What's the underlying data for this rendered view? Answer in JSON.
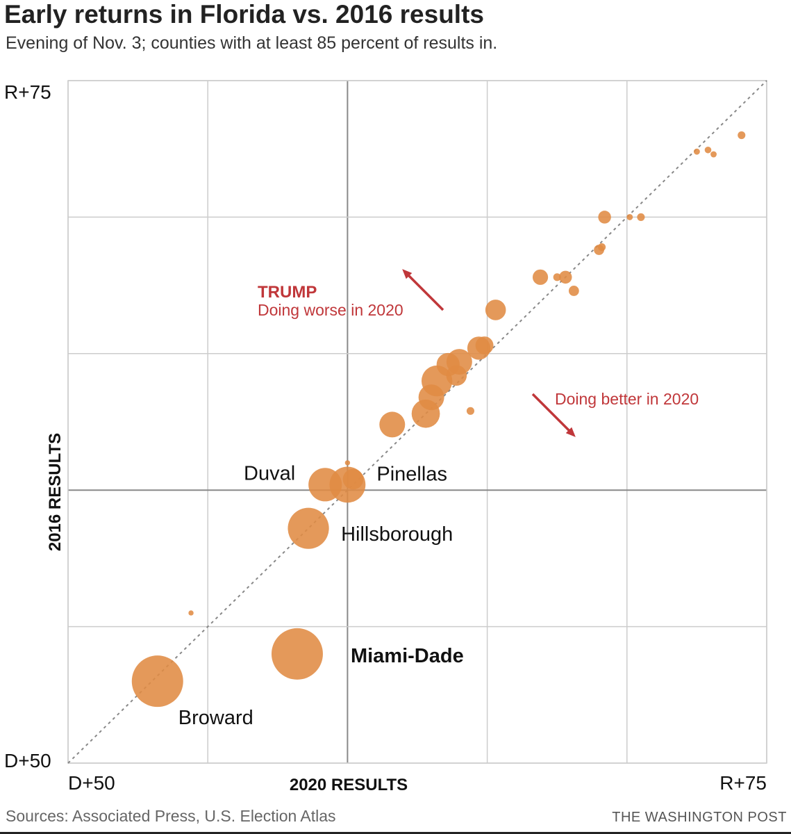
{
  "header": {
    "title": "Early returns in Florida vs. 2016 results",
    "subtitle": "Evening of Nov. 3; counties with at least 85 percent of results in."
  },
  "footer": {
    "sources": "Sources: Associated Press, U.S. Election Atlas",
    "credit": "THE WASHINGTON POST"
  },
  "colors": {
    "bubble": "#e08b43",
    "annotation": "#c0373a",
    "grid": "#cccccc",
    "axis_zero": "#888888",
    "diagonal": "#888888"
  },
  "chart_data": {
    "type": "scatter",
    "title": "Early returns in Florida vs. 2016 results",
    "subtitle": "Evening of Nov. 3; counties with at least 85 percent of results in.",
    "xlabel": "2020 RESULTS",
    "ylabel": "2016 RESULTS",
    "xlim": [
      -50,
      75
    ],
    "ylim": [
      -50,
      75
    ],
    "x_tick_labels": [
      "D+50",
      "R+75"
    ],
    "y_tick_labels": [
      "R+75",
      "D+50"
    ],
    "gridlines_every": 25,
    "reference_line": "y = x",
    "size_encoding": "relative county vote size (r = 1 to 10)",
    "annotations": {
      "trump_label": "TRUMP",
      "worse": "Doing worse in 2020",
      "better": "Doing better in 2020"
    },
    "points": [
      {
        "county": "Broward",
        "label": "Broward",
        "x": -34,
        "y": -35,
        "size": 10,
        "labeled": true,
        "bold": false
      },
      {
        "county": "Miami-Dade",
        "label": "Miami-Dade",
        "x": -9,
        "y": -30,
        "size": 10,
        "labeled": true,
        "bold": true
      },
      {
        "county": "Hillsborough",
        "label": "Hillsborough",
        "x": -7,
        "y": -7,
        "size": 8,
        "labeled": true,
        "bold": false
      },
      {
        "county": "Duval",
        "label": "Duval",
        "x": -4,
        "y": 1,
        "size": 6.5,
        "labeled": true,
        "bold": false
      },
      {
        "county": "Pinellas",
        "label": "Pinellas",
        "x": 0,
        "y": 1,
        "size": 7,
        "labeled": true,
        "bold": false
      },
      {
        "county": "",
        "x": 1,
        "y": 2,
        "size": 4,
        "labeled": false
      },
      {
        "county": "",
        "x": -28,
        "y": -22.5,
        "size": 1,
        "labeled": false
      },
      {
        "county": "",
        "x": 0,
        "y": 5,
        "size": 1,
        "labeled": false
      },
      {
        "county": "",
        "x": 8,
        "y": 12,
        "size": 5,
        "labeled": false
      },
      {
        "county": "",
        "x": 14,
        "y": 14,
        "size": 5.5,
        "labeled": false
      },
      {
        "county": "",
        "x": 15,
        "y": 17,
        "size": 5,
        "labeled": false
      },
      {
        "county": "",
        "x": 16,
        "y": 20,
        "size": 6,
        "labeled": false
      },
      {
        "county": "",
        "x": 19.5,
        "y": 21,
        "size": 4,
        "labeled": false
      },
      {
        "county": "",
        "x": 18,
        "y": 23,
        "size": 4.5,
        "labeled": false
      },
      {
        "county": "",
        "x": 20,
        "y": 23.5,
        "size": 5,
        "labeled": false
      },
      {
        "county": "",
        "x": 22,
        "y": 14.5,
        "size": 1.5,
        "labeled": false
      },
      {
        "county": "",
        "x": 23.5,
        "y": 26,
        "size": 4.5,
        "labeled": false
      },
      {
        "county": "",
        "x": 24.5,
        "y": 26.5,
        "size": 3.5,
        "labeled": false
      },
      {
        "county": "",
        "x": 26.5,
        "y": 33,
        "size": 4,
        "labeled": false
      },
      {
        "county": "",
        "x": 34.5,
        "y": 39,
        "size": 3,
        "labeled": false
      },
      {
        "county": "",
        "x": 37.5,
        "y": 39,
        "size": 1.5,
        "labeled": false
      },
      {
        "county": "",
        "x": 39,
        "y": 39,
        "size": 2.5,
        "labeled": false
      },
      {
        "county": "",
        "x": 40.5,
        "y": 36.5,
        "size": 2,
        "labeled": false
      },
      {
        "county": "",
        "x": 45,
        "y": 44,
        "size": 2,
        "labeled": false
      },
      {
        "county": "",
        "x": 45.5,
        "y": 44.5,
        "size": 1.5,
        "labeled": false
      },
      {
        "county": "",
        "x": 46,
        "y": 50,
        "size": 2.5,
        "labeled": false
      },
      {
        "county": "",
        "x": 50.5,
        "y": 50,
        "size": 1.2,
        "labeled": false
      },
      {
        "county": "",
        "x": 52.5,
        "y": 50,
        "size": 1.5,
        "labeled": false
      },
      {
        "county": "",
        "x": 62.5,
        "y": 62,
        "size": 1.2,
        "labeled": false
      },
      {
        "county": "",
        "x": 64.5,
        "y": 62.3,
        "size": 1.3,
        "labeled": false
      },
      {
        "county": "",
        "x": 65.5,
        "y": 61.5,
        "size": 1.2,
        "labeled": false
      },
      {
        "county": "",
        "x": 70.5,
        "y": 65,
        "size": 1.5,
        "labeled": false
      }
    ]
  }
}
